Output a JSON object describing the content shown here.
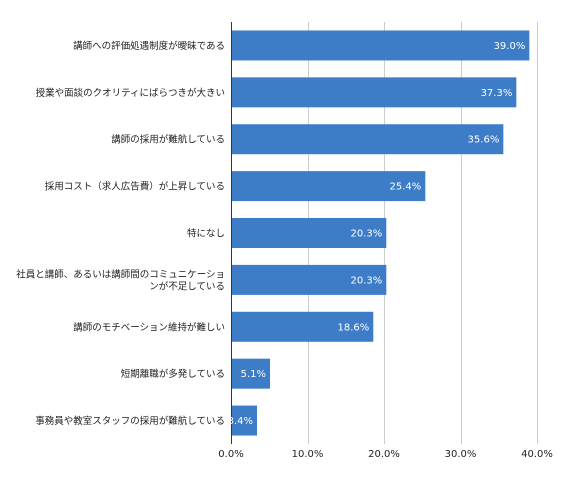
{
  "chart_data": {
    "type": "bar",
    "orientation": "horizontal",
    "categories": [
      [
        "講師への評価処遇制度が曖昧である"
      ],
      [
        "授業や面談のクオリティにばらつきが大きい"
      ],
      [
        "講師の採用が難航している"
      ],
      [
        "採用コスト（求人広告費）が上昇している"
      ],
      [
        "特になし"
      ],
      [
        "社員と講師、あるいは講師間のコミュニケーショ",
        "ンが不足している"
      ],
      [
        "講師のモチベーション維持が難しい"
      ],
      [
        "短期離職が多発している"
      ],
      [
        "事務員や教室スタッフの採用が難航している"
      ]
    ],
    "values": [
      39.0,
      37.3,
      35.6,
      25.4,
      20.3,
      20.3,
      18.6,
      5.1,
      3.4
    ],
    "value_labels": [
      "39.0%",
      "37.3%",
      "35.6%",
      "25.4%",
      "20.3%",
      "20.3%",
      "18.6%",
      "5.1%",
      "3.4%"
    ],
    "xlim": [
      0,
      40
    ],
    "x_ticks": [
      0,
      10,
      20,
      30,
      40
    ],
    "x_tick_labels": [
      "0.0%",
      "10.0%",
      "20.0%",
      "30.0%",
      "40.0%"
    ],
    "bar_color": "#3d7dc8",
    "grid": true,
    "legend": "none"
  }
}
